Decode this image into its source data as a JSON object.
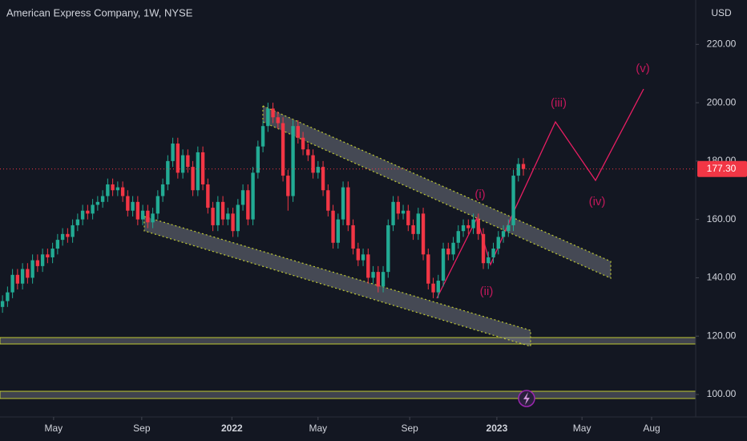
{
  "chart_data": {
    "type": "candlestick",
    "title": "American Express Company, 1W, NYSE",
    "y_axis_label": "USD",
    "up_color": "#22ab94",
    "down_color": "#f23645",
    "grid": false,
    "open": [
      130,
      132,
      135,
      141,
      138,
      143,
      140,
      146,
      144,
      148,
      147,
      150,
      153,
      155,
      154,
      158,
      160,
      163,
      162,
      165,
      166,
      168,
      172,
      170,
      171,
      168,
      163,
      166,
      160,
      163,
      159,
      162,
      168,
      172,
      180,
      186,
      176,
      182,
      178,
      170,
      183,
      172,
      164,
      158,
      166,
      160,
      162,
      156,
      165,
      170,
      160,
      176,
      185,
      192,
      198,
      195,
      193,
      175,
      168,
      192,
      188,
      184,
      182,
      176,
      178,
      170,
      163,
      152,
      160,
      171,
      158,
      150,
      146,
      148,
      140,
      142,
      137,
      142,
      158,
      166,
      162,
      163,
      158,
      155,
      162,
      148,
      138,
      135,
      139,
      150,
      148,
      152,
      156,
      158,
      157,
      160,
      155,
      145,
      147,
      150,
      154,
      156,
      158,
      175,
      179
    ],
    "high": [
      134,
      137,
      143,
      143,
      145,
      145,
      148,
      148,
      150,
      150,
      152,
      155,
      157,
      157,
      160,
      162,
      165,
      165,
      167,
      168,
      170,
      174,
      174,
      173,
      173,
      170,
      168,
      168,
      165,
      165,
      164,
      170,
      174,
      182,
      188,
      188,
      184,
      184,
      180,
      185,
      185,
      174,
      166,
      168,
      168,
      164,
      164,
      167,
      172,
      172,
      178,
      187,
      194,
      200,
      200,
      197,
      195,
      177,
      194,
      194,
      190,
      186,
      184,
      180,
      180,
      172,
      165,
      162,
      173,
      173,
      160,
      152,
      150,
      150,
      144,
      144,
      144,
      160,
      168,
      168,
      165,
      165,
      160,
      164,
      164,
      150,
      140,
      141,
      152,
      152,
      154,
      158,
      160,
      160,
      162,
      162,
      157,
      149,
      152,
      156,
      158,
      160,
      177,
      181,
      181
    ],
    "low": [
      128,
      130,
      133,
      136,
      136,
      138,
      138,
      142,
      142,
      145,
      145,
      148,
      151,
      152,
      152,
      156,
      158,
      160,
      160,
      163,
      164,
      166,
      168,
      168,
      166,
      161,
      161,
      158,
      158,
      157,
      157,
      160,
      166,
      170,
      178,
      174,
      174,
      176,
      168,
      168,
      170,
      162,
      156,
      156,
      158,
      158,
      154,
      154,
      163,
      158,
      158,
      174,
      183,
      190,
      193,
      191,
      173,
      163,
      166,
      186,
      182,
      180,
      174,
      174,
      168,
      161,
      150,
      150,
      158,
      156,
      148,
      144,
      144,
      138,
      138,
      135,
      135,
      140,
      156,
      160,
      160,
      156,
      153,
      153,
      146,
      136,
      133,
      133,
      137,
      146,
      146,
      150,
      154,
      155,
      155,
      153,
      143,
      143,
      145,
      148,
      152,
      154,
      156,
      173,
      175
    ],
    "close": [
      132,
      135,
      141,
      138,
      143,
      140,
      146,
      144,
      148,
      147,
      150,
      153,
      155,
      154,
      158,
      160,
      163,
      162,
      165,
      166,
      168,
      172,
      170,
      171,
      168,
      163,
      166,
      160,
      163,
      159,
      162,
      168,
      172,
      180,
      186,
      176,
      182,
      178,
      170,
      183,
      172,
      164,
      158,
      166,
      160,
      162,
      156,
      165,
      170,
      160,
      176,
      185,
      192,
      198,
      195,
      193,
      175,
      168,
      192,
      188,
      184,
      182,
      176,
      178,
      170,
      163,
      152,
      160,
      171,
      158,
      150,
      146,
      148,
      140,
      142,
      137,
      142,
      158,
      166,
      162,
      163,
      158,
      155,
      162,
      148,
      138,
      135,
      139,
      150,
      148,
      152,
      156,
      158,
      157,
      160,
      155,
      145,
      147,
      150,
      154,
      156,
      158,
      175,
      179,
      177.3
    ],
    "xlim": [
      -0.5,
      138.4
    ],
    "xticks": [
      {
        "value": 10.2,
        "label": "May"
      },
      {
        "value": 27.8,
        "label": "Sep"
      },
      {
        "value": 45.8,
        "label": "2022"
      },
      {
        "value": 63,
        "label": "May"
      },
      {
        "value": 81.3,
        "label": "Sep"
      },
      {
        "value": 98.7,
        "label": "2023"
      },
      {
        "value": 115.7,
        "label": "May"
      },
      {
        "value": 129.6,
        "label": "Aug"
      }
    ],
    "ylim": [
      92.3,
      235.2
    ],
    "yticks": [
      {
        "value": 100,
        "label": "100.00"
      },
      {
        "value": 120,
        "label": "120.00"
      },
      {
        "value": 140,
        "label": "140.00"
      },
      {
        "value": 160,
        "label": "160.00"
      },
      {
        "value": 180,
        "label": "180.00"
      },
      {
        "value": 200,
        "label": "200.00"
      },
      {
        "value": 220,
        "label": "220.00"
      }
    ],
    "last_price": {
      "value": 177.3,
      "label": "177.30"
    },
    "annotations": [
      "(i)",
      "(ii)",
      "(iii)",
      "(iv)",
      "(v)"
    ]
  }
}
